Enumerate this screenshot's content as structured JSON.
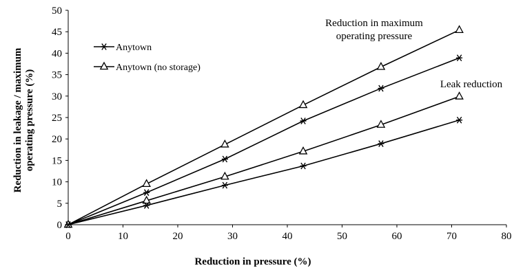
{
  "chart_data": {
    "type": "line",
    "xlabel": "Reduction in pressure (%)",
    "ylabel": [
      "Reduction in leakage / maximum",
      "operating pressure   (%)"
    ],
    "xlim": [
      0,
      80
    ],
    "ylim": [
      0,
      50
    ],
    "xticks": [
      0,
      10,
      20,
      30,
      40,
      50,
      60,
      70,
      80
    ],
    "yticks": [
      0,
      5,
      10,
      15,
      20,
      25,
      30,
      35,
      40,
      45,
      50
    ],
    "grid": false,
    "legend_position": "upper-left",
    "legend": [
      {
        "label": "Anytown",
        "marker": "star"
      },
      {
        "label": "Anytown (no storage)",
        "marker": "triangle"
      }
    ],
    "annotations": [
      {
        "text": [
          "Reduction in maximum",
          "operating pressure"
        ],
        "near": "upper-right"
      },
      {
        "text": [
          "Leak reduction"
        ],
        "near": "right"
      }
    ],
    "series": [
      {
        "group": "Reduction in maximum operating pressure",
        "marker": "triangle",
        "x": [
          0,
          14.3,
          28.6,
          42.9,
          57.1,
          71.4
        ],
        "y": [
          0,
          9.5,
          18.7,
          27.9,
          36.8,
          45.4
        ]
      },
      {
        "group": "Reduction in maximum operating pressure",
        "marker": "star",
        "x": [
          0,
          14.3,
          28.6,
          42.9,
          57.1,
          71.4
        ],
        "y": [
          0,
          7.5,
          15.3,
          24.2,
          31.8,
          38.9
        ]
      },
      {
        "group": "Leak reduction",
        "marker": "triangle",
        "x": [
          0,
          14.3,
          28.6,
          42.9,
          57.1,
          71.4
        ],
        "y": [
          0,
          5.6,
          11.2,
          17.1,
          23.3,
          29.9
        ]
      },
      {
        "group": "Leak reduction",
        "marker": "star",
        "x": [
          0,
          14.3,
          28.6,
          42.9,
          57.1,
          71.4
        ],
        "y": [
          0,
          4.5,
          9.2,
          13.7,
          18.9,
          24.4
        ]
      }
    ]
  }
}
